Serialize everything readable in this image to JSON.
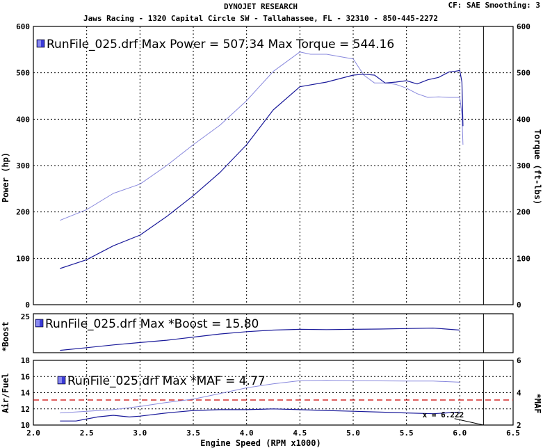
{
  "header": {
    "title": "DYNOJET RESEARCH",
    "subtitle": "Jaws Racing - 1320 Capital Circle SW - Tallahassee, FL - 32310 - 850-445-2272",
    "settings": "CF: SAE  Smoothing: 3"
  },
  "colors": {
    "power": "#1a1a9a",
    "torque": "#8888dd",
    "boost": "#1a1a9a",
    "maf": "#8888dd",
    "afr": "#1a1a9a",
    "afr_target": "#cc0000",
    "grid": "#000000"
  },
  "chart_data": [
    {
      "type": "line",
      "legend": "RunFile_025.drf Max Power = 507.34    Max Torque = 544.16",
      "ylabel": "Power (hp)",
      "y2label": "Torque (ft-lbs)",
      "ylim": [
        0,
        600
      ],
      "y2lim": [
        0,
        600
      ],
      "yticks": [
        "0",
        "100",
        "200",
        "300",
        "400",
        "500",
        "600"
      ],
      "grid": true,
      "series": [
        {
          "name": "Power",
          "x": [
            2.25,
            2.5,
            2.75,
            3.0,
            3.25,
            3.5,
            3.75,
            4.0,
            4.25,
            4.5,
            4.75,
            5.0,
            5.1,
            5.2,
            5.3,
            5.4,
            5.5,
            5.6,
            5.7,
            5.8,
            5.9,
            5.95,
            6.0,
            6.02,
            6.03
          ],
          "values": [
            78,
            97,
            127,
            150,
            190,
            235,
            285,
            345,
            420,
            470,
            480,
            495,
            497,
            495,
            478,
            480,
            483,
            476,
            485,
            490,
            502,
            503,
            505,
            480,
            385
          ]
        },
        {
          "name": "Torque",
          "x": [
            2.25,
            2.5,
            2.75,
            3.0,
            3.25,
            3.5,
            3.75,
            4.0,
            4.25,
            4.5,
            4.6,
            4.75,
            5.0,
            5.1,
            5.2,
            5.3,
            5.4,
            5.5,
            5.6,
            5.7,
            5.8,
            5.9,
            6.0,
            6.02,
            6.03
          ],
          "values": [
            182,
            205,
            240,
            260,
            300,
            345,
            387,
            440,
            503,
            545,
            540,
            540,
            530,
            495,
            478,
            478,
            475,
            467,
            455,
            447,
            448,
            447,
            447,
            410,
            345
          ]
        }
      ]
    },
    {
      "type": "line",
      "legend": "RunFile_025.drf Max *Boost = 15.80",
      "ylabel": "*Boost",
      "ylim": [
        0,
        25
      ],
      "yticks": [
        "25"
      ],
      "grid": true,
      "series": [
        {
          "name": "*Boost",
          "x": [
            2.25,
            2.5,
            2.75,
            3.0,
            3.25,
            3.5,
            3.75,
            4.0,
            4.25,
            4.5,
            4.75,
            5.0,
            5.25,
            5.5,
            5.75,
            6.0
          ],
          "values": [
            1.5,
            3.2,
            5,
            6.5,
            8,
            10,
            12,
            13.5,
            14.5,
            15,
            14.8,
            15,
            15.2,
            15.5,
            15.8,
            14.5
          ]
        }
      ]
    },
    {
      "type": "line",
      "legend": "RunFile_025.drf Max *MAF = 4.77",
      "ylabel": "Air/Fuel",
      "y2label": "*MAF",
      "xlabel": "Engine Speed (RPM x1000)",
      "ylim": [
        10,
        18
      ],
      "y2lim": [
        2,
        6
      ],
      "yticks": [
        "10",
        "12",
        "14",
        "16",
        "18"
      ],
      "y2ticks": [
        "2",
        "4",
        "6"
      ],
      "xlim": [
        2.0,
        6.5
      ],
      "xticks": [
        "2.0",
        "2.5",
        "3.0",
        "3.5",
        "4.0",
        "4.5",
        "5.0",
        "5.5",
        "6.0",
        "6.5"
      ],
      "cursor_label": "x = 6.222",
      "cursor_x": 6.222,
      "afr_target": 13.1,
      "grid": true,
      "series": [
        {
          "name": "Air/Fuel",
          "x": [
            2.25,
            2.4,
            2.6,
            2.75,
            2.9,
            3.0,
            3.25,
            3.5,
            3.75,
            4.0,
            4.25,
            4.5,
            4.75,
            5.0,
            5.25,
            5.5,
            5.75,
            6.0
          ],
          "values": [
            10.5,
            10.5,
            11.0,
            11.2,
            11.0,
            11.1,
            11.5,
            11.8,
            11.9,
            11.9,
            12.0,
            11.9,
            11.8,
            11.7,
            11.6,
            11.5,
            11.4,
            11.6
          ]
        },
        {
          "name": "*MAF",
          "x": [
            2.25,
            2.5,
            2.75,
            3.0,
            3.25,
            3.5,
            3.75,
            4.0,
            4.25,
            4.5,
            4.75,
            5.0,
            5.25,
            5.5,
            5.75,
            6.0
          ],
          "values": [
            2.75,
            2.85,
            2.95,
            3.15,
            3.4,
            3.6,
            3.95,
            4.3,
            4.55,
            4.74,
            4.77,
            4.74,
            4.73,
            4.72,
            4.72,
            4.65
          ]
        }
      ]
    }
  ]
}
